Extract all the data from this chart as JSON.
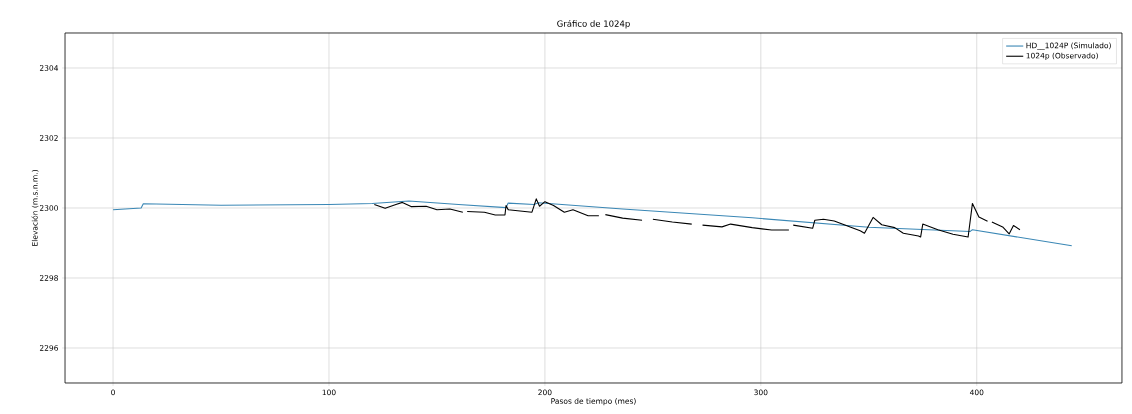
{
  "chart_data": {
    "type": "line",
    "title": "Gráfico de 1024p",
    "xlabel": "Pasos de tiempo (mes)",
    "ylabel": "Elevación (m.s.n.m.)",
    "xlim": [
      -22.25,
      467.25
    ],
    "ylim": [
      2295,
      2305
    ],
    "xticks": [
      0,
      100,
      200,
      300,
      400
    ],
    "yticks": [
      2296,
      2298,
      2300,
      2302,
      2304
    ],
    "grid": true,
    "legend": "top right",
    "line_style": "solid",
    "marker": "none",
    "series": [
      {
        "name": "HD__1024P (Simulado)",
        "color": "#3a87b5",
        "x": [
          0,
          13,
          14,
          50,
          100,
          120,
          137,
          160,
          182,
          183,
          195,
          197,
          236,
          296,
          350,
          397,
          398,
          444
        ],
        "values": [
          2299.95,
          2300.0,
          2300.12,
          2300.08,
          2300.1,
          2300.13,
          2300.2,
          2300.1,
          2300.01,
          2300.14,
          2300.1,
          2300.15,
          2299.97,
          2299.72,
          2299.45,
          2299.33,
          2299.38,
          2298.92
        ]
      },
      {
        "name": "1024p (Observado)",
        "color": "#000000",
        "x": [
          121,
          126,
          131,
          134,
          138,
          145,
          150,
          156,
          162,
          163,
          164,
          172,
          177,
          181.5,
          182,
          183,
          194,
          196,
          197.5,
          200,
          204,
          209,
          213,
          220,
          225,
          226,
          228,
          236,
          245,
          246,
          250,
          259,
          268,
          269,
          273,
          282,
          286,
          296,
          305,
          313,
          314,
          315,
          324,
          325,
          329,
          334,
          346,
          348,
          352,
          356,
          362,
          366,
          373,
          374,
          375,
          378,
          382,
          389,
          396,
          398,
          401,
          405,
          406,
          407,
          412,
          415,
          417,
          420
        ],
        "values": [
          2300.1,
          2299.99,
          2300.1,
          2300.16,
          2300.04,
          2300.05,
          2299.95,
          2299.97,
          2299.88,
          null,
          2299.9,
          2299.88,
          2299.8,
          2299.8,
          2300.07,
          2299.95,
          2299.88,
          2300.26,
          2300.05,
          2300.18,
          2300.07,
          2299.88,
          2299.95,
          2299.78,
          2299.78,
          null,
          2299.81,
          2299.71,
          2299.65,
          null,
          2299.68,
          2299.6,
          2299.54,
          null,
          2299.51,
          2299.46,
          2299.54,
          2299.44,
          2299.37,
          2299.37,
          null,
          2299.51,
          2299.42,
          2299.65,
          2299.68,
          2299.63,
          2299.35,
          2299.28,
          2299.73,
          2299.52,
          2299.44,
          2299.28,
          2299.2,
          2299.17,
          2299.54,
          2299.47,
          2299.38,
          2299.25,
          2299.17,
          2300.13,
          2299.74,
          2299.62,
          null,
          2299.6,
          2299.46,
          2299.26,
          2299.5,
          2299.38
        ]
      }
    ]
  }
}
